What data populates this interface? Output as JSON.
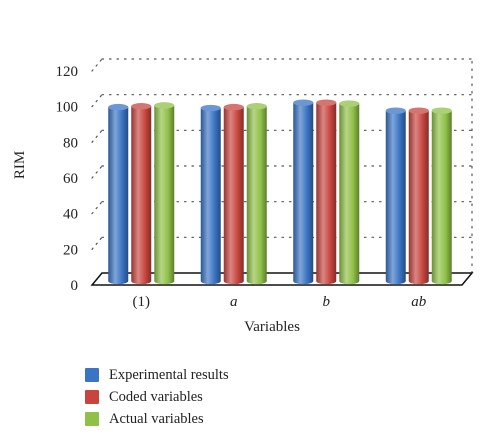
{
  "chart_data": {
    "type": "bar",
    "categories": [
      "(1)",
      "a",
      "b",
      "ab"
    ],
    "categories_italic": [
      false,
      true,
      true,
      true
    ],
    "series": [
      {
        "name": "Experimental results",
        "values": [
          97.5,
          97.0,
          100.0,
          95.5
        ],
        "color": "#3a74c4"
      },
      {
        "name": "Coded variables",
        "values": [
          98.0,
          97.5,
          100.0,
          95.5
        ],
        "color": "#c8453f"
      },
      {
        "name": "Actual variables",
        "values": [
          98.5,
          98.0,
          99.5,
          95.5
        ],
        "color": "#8fc047"
      }
    ],
    "xlabel": "Variables",
    "ylabel": "RIM",
    "ylim": [
      0,
      120
    ],
    "yticks": [
      0,
      20,
      40,
      60,
      80,
      100,
      120
    ],
    "grid": "dotted",
    "legend_position": "bottom"
  }
}
